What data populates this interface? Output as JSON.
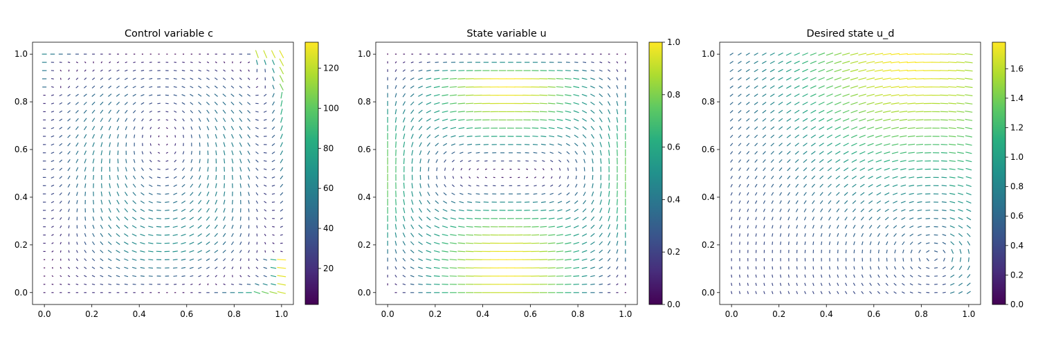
{
  "chart_data": [
    {
      "type": "quiver",
      "title": "Control variable c",
      "xlabel": "",
      "ylabel": "",
      "xlim": [
        -0.05,
        1.05
      ],
      "ylim": [
        -0.05,
        1.05
      ],
      "x_ticks": [
        "0.0",
        "0.2",
        "0.4",
        "0.6",
        "0.8",
        "1.0"
      ],
      "y_ticks": [
        "0.0",
        "0.2",
        "0.4",
        "0.6",
        "0.8",
        "1.0"
      ],
      "grid": false,
      "field": "two counter-rotating vortices (upper-left, right) with strong boundary flow along bottom and right edges",
      "colorbar": {
        "colormap": "viridis",
        "range": [
          2,
          133
        ],
        "ticks": [
          "20",
          "40",
          "60",
          "80",
          "100",
          "120"
        ]
      }
    },
    {
      "type": "quiver",
      "title": "State variable u",
      "xlabel": "",
      "ylabel": "",
      "xlim": [
        -0.05,
        1.05
      ],
      "ylim": [
        -0.05,
        1.05
      ],
      "x_ticks": [
        "0.0",
        "0.2",
        "0.4",
        "0.6",
        "0.8",
        "1.0"
      ],
      "y_ticks": [
        "0.0",
        "0.2",
        "0.4",
        "0.6",
        "0.8",
        "1.0"
      ],
      "grid": false,
      "field": "large clockwise vortex with a secondary lower circulation; fastest flow along top edge",
      "colorbar": {
        "colormap": "viridis",
        "range": [
          0,
          1
        ],
        "ticks": [
          "0.0",
          "0.2",
          "0.4",
          "0.6",
          "0.8",
          "1.0"
        ]
      }
    },
    {
      "type": "quiver",
      "title": "Desired state u_d",
      "xlabel": "",
      "ylabel": "",
      "xlim": [
        -0.05,
        1.05
      ],
      "ylim": [
        -0.05,
        1.05
      ],
      "x_ticks": [
        "0.0",
        "0.2",
        "0.4",
        "0.6",
        "0.8",
        "1.0"
      ],
      "y_ticks": [
        "0.0",
        "0.2",
        "0.4",
        "0.6",
        "0.8",
        "1.0"
      ],
      "grid": false,
      "field": "circulation centered near (0.85, 0.15); strongest flow at top-right",
      "colorbar": {
        "colormap": "viridis",
        "range": [
          0,
          1.78
        ],
        "ticks": [
          "0.0",
          "0.2",
          "0.4",
          "0.6",
          "0.8",
          "1.0",
          "1.2",
          "1.4",
          "1.6"
        ]
      }
    }
  ]
}
